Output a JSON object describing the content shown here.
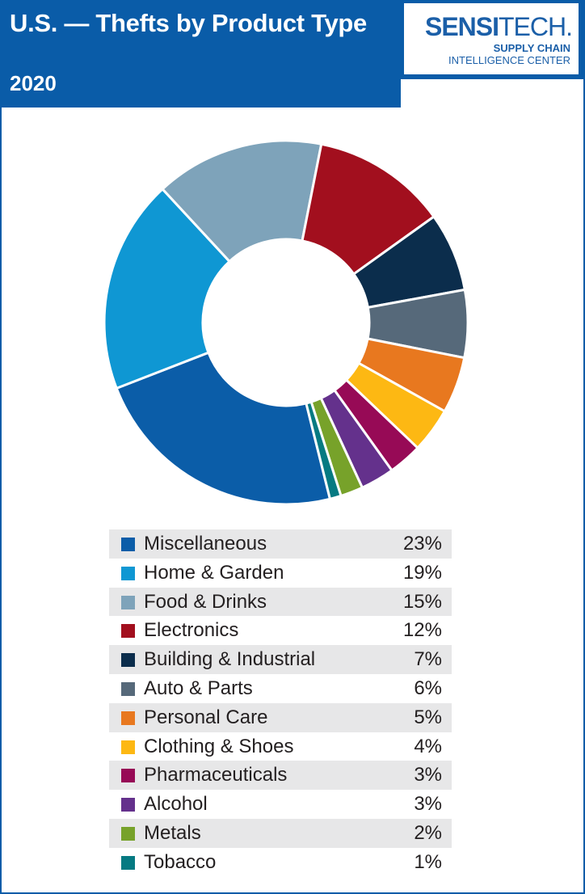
{
  "header": {
    "title": "U.S. — Thefts by Product Type",
    "year": "2020"
  },
  "logo": {
    "name_bold": "SENSI",
    "name_regular": "TECH.",
    "subline1": "SUPPLY CHAIN",
    "subline2": "INTELLIGENCE CENTER"
  },
  "chart_data": {
    "type": "pie",
    "donut": true,
    "categories": [
      "Miscellaneous",
      "Home & Garden",
      "Food & Drinks",
      "Electronics",
      "Building & Industrial",
      "Auto & Parts",
      "Personal Care",
      "Clothing & Shoes",
      "Pharmaceuticals",
      "Alcohol",
      "Metals",
      "Tobacco"
    ],
    "values": [
      23,
      19,
      15,
      12,
      7,
      6,
      5,
      4,
      3,
      3,
      2,
      1
    ],
    "labels": [
      "23%",
      "19%",
      "15%",
      "12%",
      "7%",
      "6%",
      "5%",
      "4%",
      "3%",
      "3%",
      "2%",
      "1%"
    ],
    "colors": [
      "#0b5da8",
      "#0f97d3",
      "#7ea3ba",
      "#a20f1e",
      "#0b2d4c",
      "#56697a",
      "#e8781f",
      "#fdb813",
      "#970a56",
      "#64318c",
      "#77a22a",
      "#067a82"
    ],
    "legend_placement": "bottom",
    "title": "U.S. — Thefts by Product Type",
    "subtitle": "2020"
  }
}
